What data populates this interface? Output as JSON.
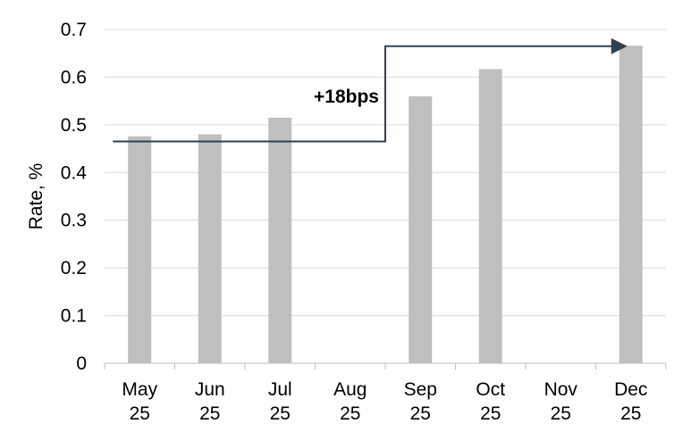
{
  "chart_data": {
    "type": "bar",
    "categories": [
      [
        "May",
        "25"
      ],
      [
        "Jun",
        "25"
      ],
      [
        "Jul",
        "25"
      ],
      [
        "Aug",
        "25"
      ],
      [
        "Sep",
        "25"
      ],
      [
        "Oct",
        "25"
      ],
      [
        "Nov",
        "25"
      ],
      [
        "Dec",
        "25"
      ]
    ],
    "values": [
      0.476,
      0.48,
      0.515,
      null,
      0.56,
      0.617,
      null,
      0.666
    ],
    "ylabel": "Rate, %",
    "xlabel": "",
    "ylim": [
      0,
      0.7
    ],
    "yticks": [
      "0",
      "0.1",
      "0.2",
      "0.3",
      "0.4",
      "0.5",
      "0.6",
      "0.7"
    ],
    "grid": true,
    "annotation": {
      "text": "+18bps",
      "from_value": 0.465,
      "to_value": 0.665,
      "from_category": "May",
      "step_category_boundary": "Aug/Sep",
      "to_category": "Dec"
    },
    "colors": {
      "bar": "#bfbfbf",
      "grid": "#d9d9d9",
      "axis": "#bfbfbf",
      "arrow": "#333f50"
    }
  }
}
